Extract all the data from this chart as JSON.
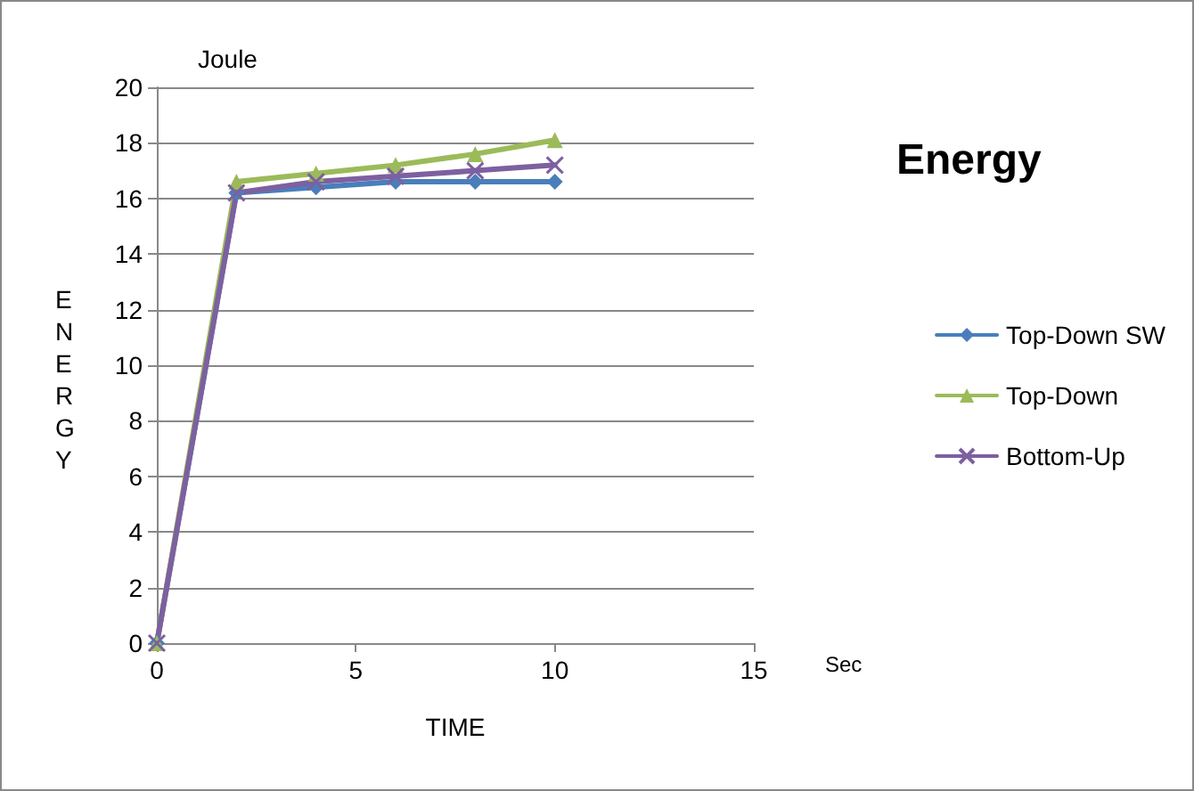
{
  "chart_data": {
    "type": "line",
    "title": "Energy",
    "xlabel": "TIME",
    "ylabel": "ENERGY",
    "annotations": [
      "Joule",
      "Sec"
    ],
    "x": [
      0,
      2,
      4,
      6,
      8,
      10
    ],
    "series": [
      {
        "name": "Top-Down SW",
        "color": "#4a7ebb",
        "marker": "diamond",
        "values": [
          0,
          16.2,
          16.4,
          16.6,
          16.6,
          16.6
        ]
      },
      {
        "name": "Top-Down",
        "color": "#9bbb59",
        "marker": "triangle",
        "values": [
          0,
          16.6,
          16.9,
          17.2,
          17.6,
          18.1
        ]
      },
      {
        "name": "Bottom-Up",
        "color": "#7d60a0",
        "marker": "cross",
        "values": [
          0,
          16.2,
          16.6,
          16.8,
          17.0,
          17.2
        ]
      }
    ],
    "xlim": [
      0,
      15
    ],
    "xticks": [
      0,
      5,
      10,
      15
    ],
    "ylim": [
      0,
      20
    ],
    "yticks": [
      0,
      2,
      4,
      6,
      8,
      10,
      12,
      14,
      16,
      18,
      20
    ],
    "grid": "y",
    "legend": "right"
  }
}
